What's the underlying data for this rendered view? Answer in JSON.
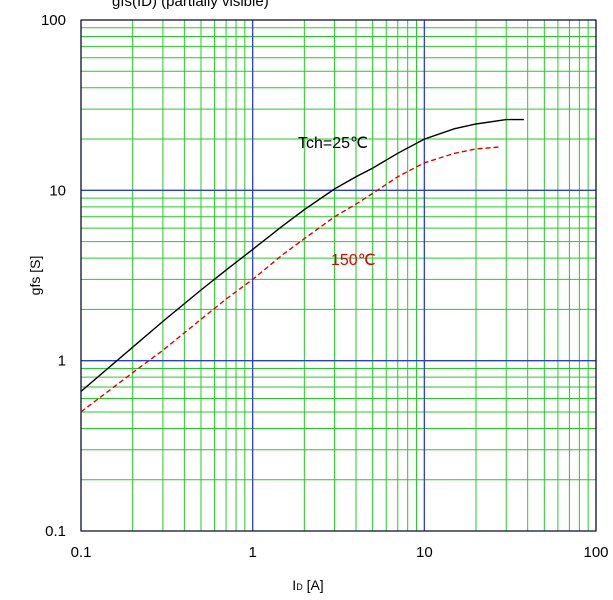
{
  "chart_data": {
    "type": "line",
    "title": "gfs(ID) (partially visible)",
    "xlabel_main": "I",
    "xlabel_sub": "D",
    "xlabel_unit": " [A]",
    "ylabel": "gfs [S]",
    "x_scale": "log",
    "y_scale": "log",
    "xlim": [
      0.1,
      100
    ],
    "ylim": [
      0.1,
      100
    ],
    "x_ticks": [
      0.1,
      1,
      10,
      100
    ],
    "x_tick_labels": [
      "0.1",
      "1",
      "10",
      "100"
    ],
    "y_ticks": [
      0.1,
      1,
      10,
      100
    ],
    "y_tick_labels": [
      "0.1",
      "1",
      "10",
      "100"
    ],
    "grid": true,
    "colors": {
      "major_grid": "#2a3fd6",
      "minor_grid": "#22cc22",
      "frame": "#000000"
    },
    "series": [
      {
        "name": "Tch=25℃",
        "color": "#000000",
        "dash": "solid",
        "x": [
          0.1,
          0.2,
          0.3,
          0.5,
          0.7,
          1,
          1.5,
          2,
          3,
          4,
          5,
          7,
          10,
          15,
          20,
          30,
          38
        ],
        "y": [
          0.66,
          1.2,
          1.7,
          2.6,
          3.4,
          4.5,
          6.2,
          7.7,
          10.2,
          12.0,
          13.5,
          16.5,
          20,
          23,
          24.5,
          26,
          26
        ]
      },
      {
        "name": "150℃",
        "color": "#e00000",
        "dash": "dashed",
        "x": [
          0.1,
          0.2,
          0.3,
          0.5,
          0.7,
          1,
          1.5,
          2,
          3,
          4,
          5,
          7,
          10,
          15,
          20,
          28
        ],
        "y": [
          0.5,
          0.85,
          1.15,
          1.75,
          2.3,
          3.0,
          4.2,
          5.2,
          7.0,
          8.3,
          9.6,
          12.0,
          14.5,
          16.5,
          17.5,
          18
        ]
      }
    ]
  }
}
